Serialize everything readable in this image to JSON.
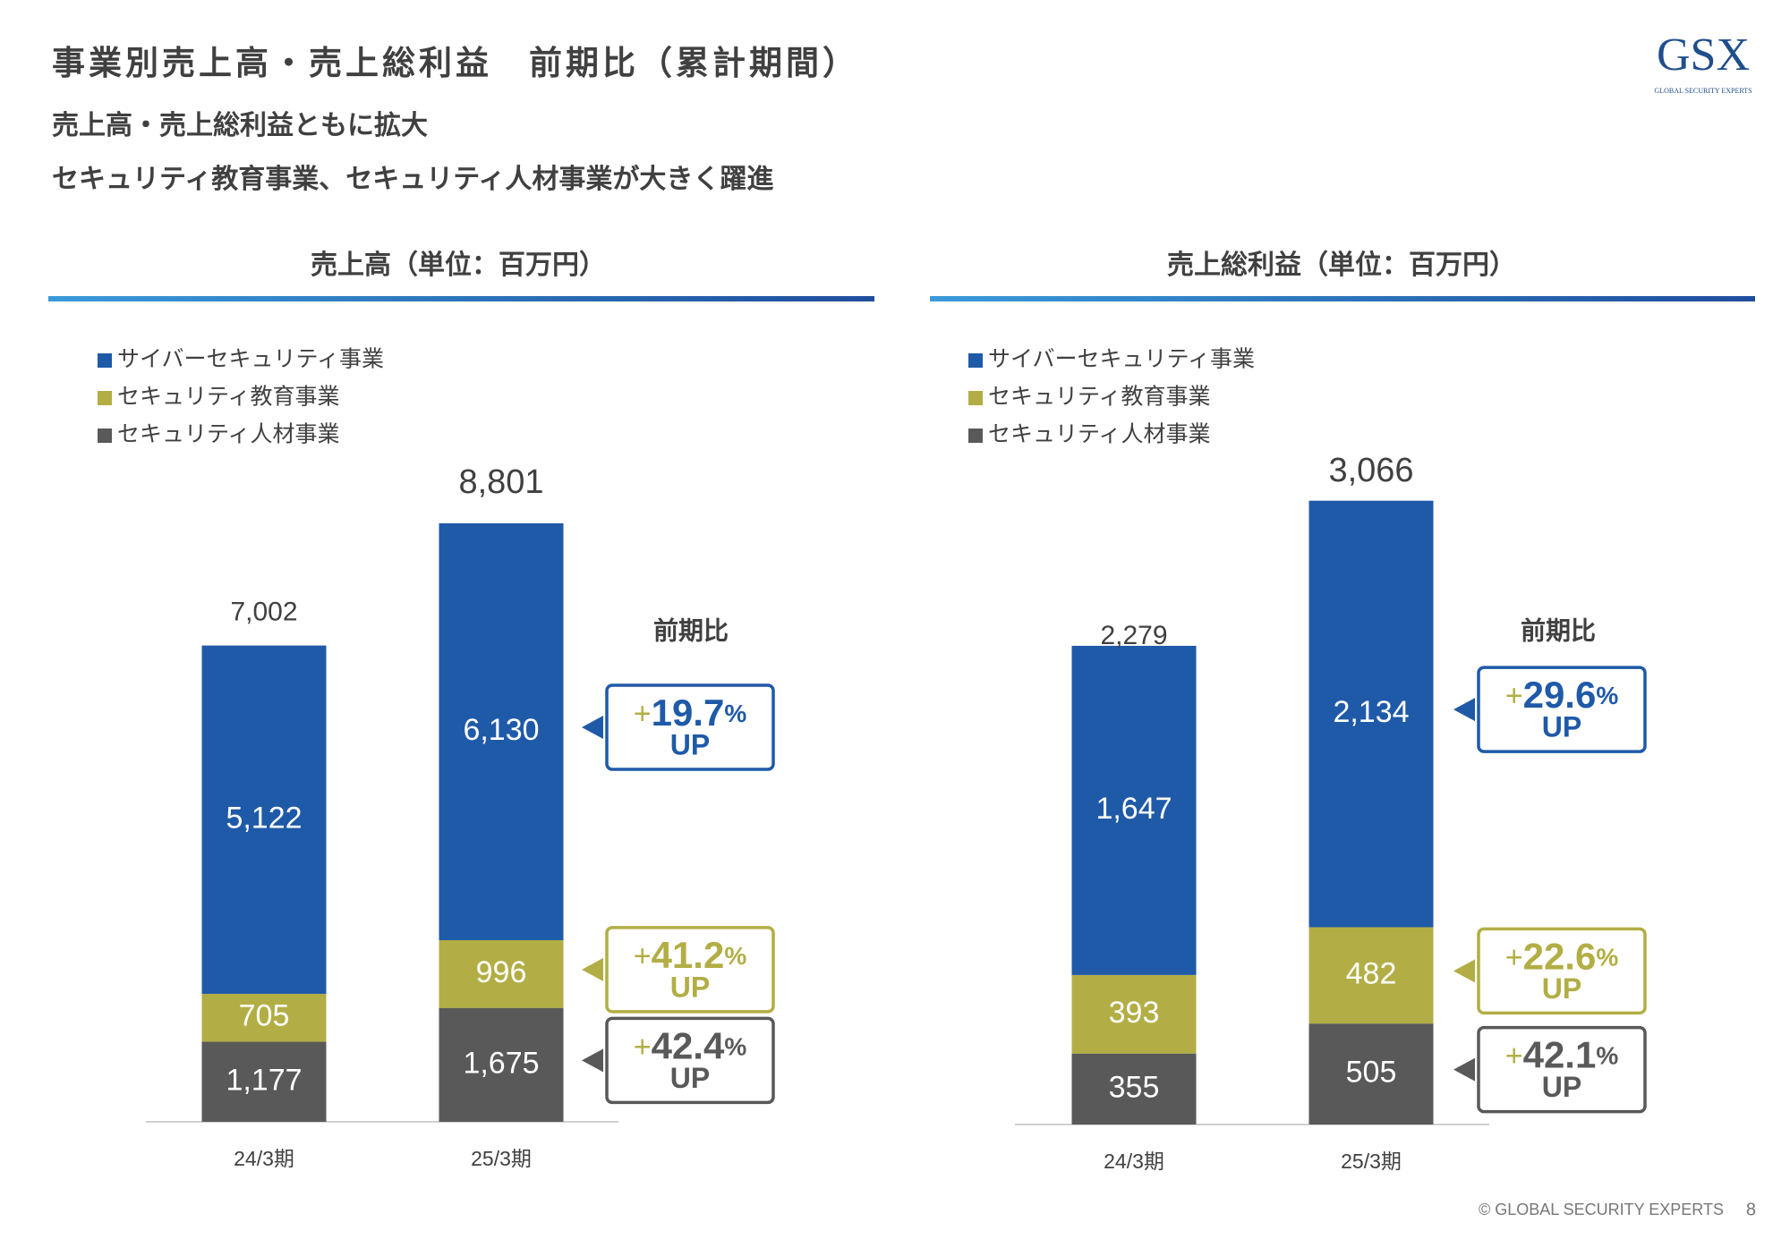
{
  "header": {
    "title": "事業別売上高・売上総利益　前期比（累計期間）",
    "subtitles": [
      "売上高・売上総利益ともに拡大",
      "セキュリティ教育事業、セキュリティ人材事業が大きく躍進"
    ],
    "logo": "GSX",
    "logo_caption": "GLOBAL SECURITY EXPERTS"
  },
  "footer": {
    "copyright": "© GLOBAL SECURITY EXPERTS",
    "page": "8"
  },
  "chart_data": [
    {
      "type": "bar",
      "stacked": true,
      "title": "売上高（単位：百万円）",
      "categories": [
        "24/3期",
        "25/3期"
      ],
      "series": [
        {
          "name": "サイバーセキュリティ事業",
          "color": "#1f5aa8",
          "values": [
            5122,
            6130
          ],
          "value_labels": [
            "5,122",
            "6,130"
          ]
        },
        {
          "name": "セキュリティ教育事業",
          "color": "#b2ae45",
          "values": [
            705,
            996
          ],
          "value_labels": [
            "705",
            "996"
          ]
        },
        {
          "name": "セキュリティ人材事業",
          "color": "#595959",
          "values": [
            1177,
            1675
          ],
          "value_labels": [
            "1,177",
            "1,675"
          ]
        }
      ],
      "totals": [
        {
          "value": 7002,
          "label": "7,002"
        },
        {
          "value": 8801,
          "label": "8,801"
        }
      ],
      "change_title": "前期比",
      "growth": [
        {
          "sign": "+",
          "value": 19.7,
          "unit": "%",
          "word": "UP"
        },
        {
          "sign": "+",
          "value": 41.2,
          "unit": "%",
          "word": "UP"
        },
        {
          "sign": "+",
          "value": 42.4,
          "unit": "%",
          "word": "UP"
        }
      ]
    },
    {
      "type": "bar",
      "stacked": true,
      "title": "売上総利益（単位：百万円）",
      "categories": [
        "24/3期",
        "25/3期"
      ],
      "series": [
        {
          "name": "サイバーセキュリティ事業",
          "color": "#1f5aa8",
          "values": [
            1647,
            2134
          ],
          "value_labels": [
            "1,647",
            "2,134"
          ]
        },
        {
          "name": "セキュリティ教育事業",
          "color": "#b2ae45",
          "values": [
            393,
            482
          ],
          "value_labels": [
            "393",
            "482"
          ]
        },
        {
          "name": "セキュリティ人材事業",
          "color": "#595959",
          "values": [
            355,
            505
          ],
          "value_labels": [
            "355",
            "505"
          ]
        }
      ],
      "totals": [
        {
          "value": 2279,
          "label": "2,279"
        },
        {
          "value": 3066,
          "label": "3,066"
        }
      ],
      "change_title": "前期比",
      "growth": [
        {
          "sign": "+",
          "value": 29.6,
          "unit": "%",
          "word": "UP"
        },
        {
          "sign": "+",
          "value": 22.6,
          "unit": "%",
          "word": "UP"
        },
        {
          "sign": "+",
          "value": 42.1,
          "unit": "%",
          "word": "UP"
        }
      ]
    }
  ]
}
